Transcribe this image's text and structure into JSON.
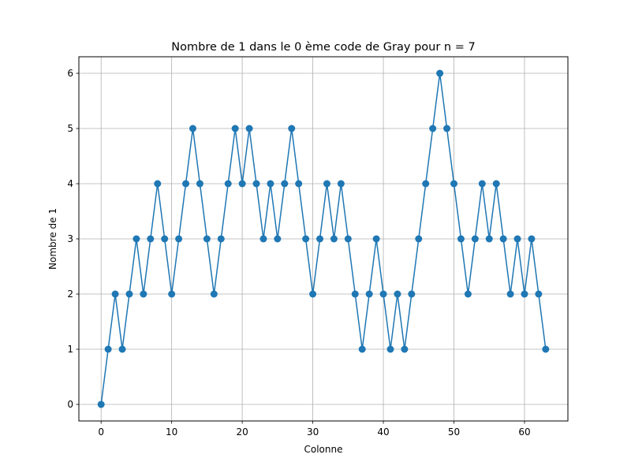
{
  "chart_data": {
    "type": "line",
    "title": "Nombre de 1 dans le 0 ème code de Gray pour n = 7",
    "xlabel": "Colonne",
    "ylabel": "Nombre de 1",
    "xlim": [
      -3.15,
      66.15
    ],
    "ylim": [
      -0.3,
      6.3
    ],
    "xticks": [
      0,
      10,
      20,
      30,
      40,
      50,
      60
    ],
    "yticks": [
      0,
      1,
      2,
      3,
      4,
      5,
      6
    ],
    "grid": true,
    "marker": "circle",
    "color": "#1f77b4",
    "x": [
      0,
      1,
      2,
      3,
      4,
      5,
      6,
      7,
      8,
      9,
      10,
      11,
      12,
      13,
      14,
      15,
      16,
      17,
      18,
      19,
      20,
      21,
      22,
      23,
      24,
      25,
      26,
      27,
      28,
      29,
      30,
      31,
      32,
      33,
      34,
      35,
      36,
      37,
      38,
      39,
      40,
      41,
      42,
      43,
      44,
      45,
      46,
      47,
      48,
      49,
      50,
      51,
      52,
      53,
      54,
      55,
      56,
      57,
      58,
      59,
      60,
      61,
      62,
      63
    ],
    "y": [
      0,
      1,
      2,
      1,
      2,
      3,
      2,
      3,
      4,
      3,
      2,
      3,
      4,
      5,
      4,
      3,
      2,
      3,
      4,
      5,
      4,
      5,
      4,
      3,
      4,
      3,
      4,
      5,
      4,
      3,
      2,
      3,
      4,
      3,
      4,
      3,
      2,
      1,
      2,
      3,
      2,
      1,
      2,
      1,
      2,
      3,
      4,
      5,
      6,
      5,
      4,
      3,
      2,
      3,
      4,
      3,
      4,
      3,
      2,
      3,
      2,
      3,
      2,
      1
    ]
  }
}
